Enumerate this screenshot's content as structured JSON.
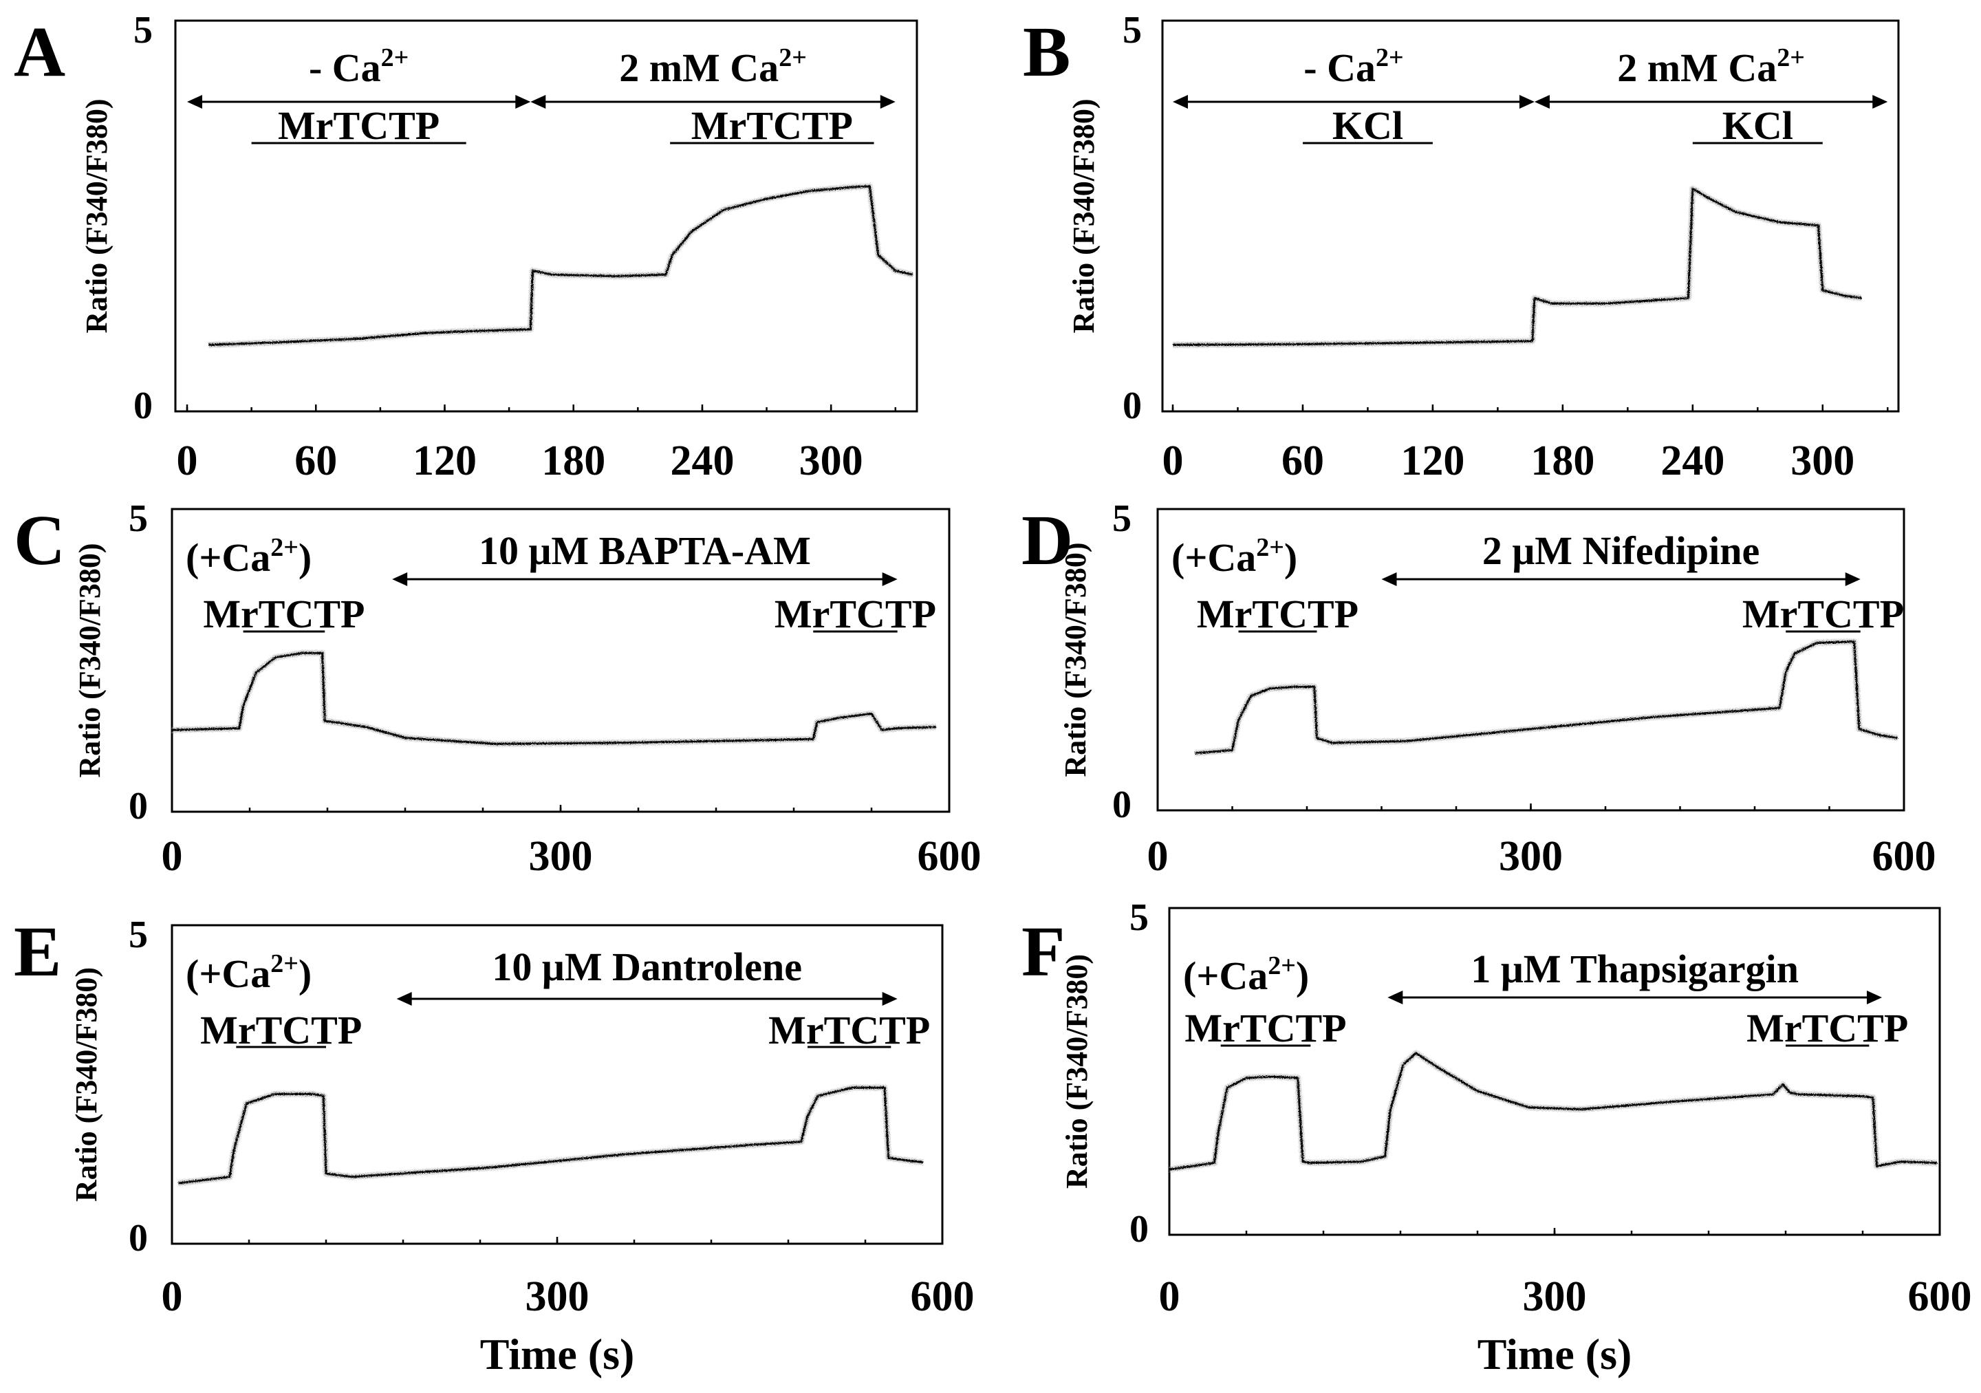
{
  "chart_data": [
    {
      "id": "A",
      "type": "line",
      "panel_label": "A",
      "ylabel": "Ratio (F340/F380)",
      "xlabel": "",
      "xlim": [
        0,
        340
      ],
      "ylim": [
        0,
        5
      ],
      "x_ticks": [
        0,
        60,
        120,
        180,
        240,
        300
      ],
      "x_tick_labels": [
        "0",
        "60",
        "120",
        "180",
        "240",
        "300"
      ],
      "y_tick_labels": [
        "0",
        "5"
      ],
      "conditions": [
        {
          "label": "- Ca",
          "sup": "2+",
          "from": 0,
          "to": 160
        },
        {
          "label": "2 mM Ca",
          "sup": "2+",
          "from": 160,
          "to": 330
        }
      ],
      "treatments": [
        {
          "label": "MrTCTP",
          "from": 30,
          "to": 130
        },
        {
          "label": "MrTCTP",
          "from": 225,
          "to": 320
        }
      ],
      "series": [
        {
          "name": "trace",
          "x": [
            10,
            40,
            80,
            110,
            125,
            160,
            161,
            170,
            200,
            223,
            226,
            235,
            250,
            270,
            290,
            310,
            318,
            322,
            330,
            338
          ],
          "y": [
            0.85,
            0.88,
            0.93,
            1.0,
            1.02,
            1.05,
            1.8,
            1.75,
            1.73,
            1.75,
            2.0,
            2.3,
            2.58,
            2.72,
            2.82,
            2.87,
            2.88,
            2.0,
            1.8,
            1.75
          ]
        }
      ]
    },
    {
      "id": "B",
      "type": "line",
      "panel_label": "B",
      "ylabel": "Ratio (F340/F380)",
      "xlabel": "",
      "xlim": [
        0,
        335
      ],
      "ylim": [
        0,
        5
      ],
      "x_ticks": [
        0,
        60,
        120,
        180,
        240,
        300
      ],
      "x_tick_labels": [
        "0",
        "60",
        "120",
        "180",
        "240",
        "300"
      ],
      "y_tick_labels": [
        "0",
        "5"
      ],
      "conditions": [
        {
          "label": "- Ca",
          "sup": "2+",
          "from": 0,
          "to": 167
        },
        {
          "label": "2 mM Ca",
          "sup": "2+",
          "from": 167,
          "to": 330
        }
      ],
      "treatments": [
        {
          "label": "KCl",
          "from": 60,
          "to": 120
        },
        {
          "label": "KCl",
          "from": 240,
          "to": 300
        }
      ],
      "series": [
        {
          "name": "trace",
          "x": [
            0,
            60,
            120,
            166,
            167,
            175,
            200,
            238,
            240,
            248,
            260,
            280,
            298,
            300,
            310,
            318
          ],
          "y": [
            0.85,
            0.86,
            0.88,
            0.9,
            1.45,
            1.38,
            1.38,
            1.45,
            2.85,
            2.72,
            2.55,
            2.42,
            2.38,
            1.55,
            1.48,
            1.45
          ]
        }
      ]
    },
    {
      "id": "C",
      "type": "line",
      "panel_label": "C",
      "ylabel": "Ratio (F340/F380)",
      "xlabel": "",
      "xlim": [
        0,
        600
      ],
      "ylim": [
        0,
        5
      ],
      "x_ticks": [
        0,
        300,
        600
      ],
      "x_tick_labels": [
        "0",
        "300",
        "600"
      ],
      "y_tick_labels": [
        "0",
        "5"
      ],
      "conditions": [
        {
          "label": "(+Ca",
          "sup": "2+",
          "close": ")",
          "position": "top-left"
        },
        {
          "label": "10 μM BAPTA-AM",
          "from": 170,
          "to": 560
        }
      ],
      "treatments": [
        {
          "label": "MrTCTP",
          "from": 55,
          "to": 118
        },
        {
          "label": "MrTCTP",
          "from": 495,
          "to": 560
        }
      ],
      "series": [
        {
          "name": "trace",
          "x": [
            0,
            52,
            55,
            65,
            80,
            100,
            116,
            118,
            125,
            150,
            180,
            250,
            350,
            450,
            495,
            498,
            515,
            540,
            548,
            560,
            590
          ],
          "y": [
            1.35,
            1.38,
            1.75,
            2.3,
            2.55,
            2.62,
            2.62,
            1.5,
            1.48,
            1.4,
            1.22,
            1.12,
            1.14,
            1.18,
            1.2,
            1.48,
            1.55,
            1.62,
            1.35,
            1.38,
            1.4
          ]
        }
      ]
    },
    {
      "id": "D",
      "type": "line",
      "panel_label": "D",
      "ylabel": "Ratio (F340/F380)",
      "xlabel": "",
      "xlim": [
        0,
        600
      ],
      "ylim": [
        0,
        5
      ],
      "x_ticks": [
        0,
        300,
        600
      ],
      "x_tick_labels": [
        "0",
        "300",
        "600"
      ],
      "y_tick_labels": [
        "0",
        "5"
      ],
      "conditions": [
        {
          "label": "(+Ca",
          "sup": "2+",
          "close": ")",
          "position": "top-left"
        },
        {
          "label": "2 μM Nifedipine",
          "from": 180,
          "to": 565
        }
      ],
      "treatments": [
        {
          "label": "MrTCTP",
          "from": 65,
          "to": 128
        },
        {
          "label": "MrTCTP",
          "from": 505,
          "to": 565
        }
      ],
      "series": [
        {
          "name": "trace",
          "x": [
            30,
            60,
            65,
            75,
            90,
            110,
            126,
            128,
            140,
            200,
            300,
            400,
            500,
            505,
            512,
            530,
            560,
            564,
            580,
            595
          ],
          "y": [
            0.95,
            1.0,
            1.5,
            1.9,
            2.02,
            2.05,
            2.05,
            1.2,
            1.12,
            1.15,
            1.35,
            1.55,
            1.7,
            2.3,
            2.6,
            2.78,
            2.8,
            1.35,
            1.25,
            1.2
          ]
        }
      ]
    },
    {
      "id": "E",
      "type": "line",
      "panel_label": "E",
      "ylabel": "Ratio (F340/F380)",
      "xlabel": "Time (s)",
      "xlim": [
        0,
        600
      ],
      "ylim": [
        0,
        5
      ],
      "x_ticks": [
        0,
        300,
        600
      ],
      "x_tick_labels": [
        "0",
        "300",
        "600"
      ],
      "y_tick_labels": [
        "0",
        "5"
      ],
      "conditions": [
        {
          "label": "(+Ca",
          "sup": "2+",
          "close": ")",
          "position": "top-left"
        },
        {
          "label": "10 μM Dantrolene",
          "from": 175,
          "to": 565
        }
      ],
      "treatments": [
        {
          "label": "MrTCTP",
          "from": 50,
          "to": 120
        },
        {
          "label": "MrTCTP",
          "from": 495,
          "to": 560
        }
      ],
      "series": [
        {
          "name": "trace",
          "x": [
            5,
            45,
            48,
            58,
            80,
            110,
            118,
            120,
            140,
            250,
            350,
            450,
            490,
            495,
            503,
            530,
            555,
            558,
            575,
            585
          ],
          "y": [
            0.95,
            1.05,
            1.45,
            2.2,
            2.35,
            2.35,
            2.32,
            1.1,
            1.05,
            1.2,
            1.4,
            1.55,
            1.6,
            2.0,
            2.32,
            2.45,
            2.45,
            1.35,
            1.3,
            1.28
          ]
        }
      ]
    },
    {
      "id": "F",
      "type": "line",
      "panel_label": "F",
      "ylabel": "Ratio (F340/F380)",
      "xlabel": "Time (s)",
      "xlim": [
        0,
        600
      ],
      "ylim": [
        0,
        5
      ],
      "x_ticks": [
        0,
        300,
        600
      ],
      "x_tick_labels": [
        "0",
        "300",
        "600"
      ],
      "y_tick_labels": [
        "0",
        "5"
      ],
      "conditions": [
        {
          "label": "(+Ca",
          "sup": "2+",
          "close": ")",
          "position": "top-left"
        },
        {
          "label": "1 μM Thapsigargin",
          "from": 170,
          "to": 555
        }
      ],
      "treatments": [
        {
          "label": "MrTCTP",
          "from": 40,
          "to": 110
        },
        {
          "label": "MrTCTP",
          "from": 480,
          "to": 545
        }
      ],
      "series": [
        {
          "name": "trace",
          "x": [
            0,
            35,
            38,
            45,
            60,
            80,
            100,
            104,
            110,
            150,
            168,
            172,
            182,
            192,
            210,
            240,
            280,
            320,
            400,
            470,
            478,
            483,
            490,
            540,
            548,
            551,
            570,
            598
          ],
          "y": [
            1.0,
            1.1,
            1.55,
            2.25,
            2.4,
            2.42,
            2.4,
            1.12,
            1.1,
            1.12,
            1.2,
            1.9,
            2.6,
            2.78,
            2.55,
            2.2,
            1.95,
            1.92,
            2.05,
            2.15,
            2.3,
            2.18,
            2.15,
            2.12,
            2.1,
            1.05,
            1.12,
            1.1
          ]
        }
      ]
    }
  ]
}
